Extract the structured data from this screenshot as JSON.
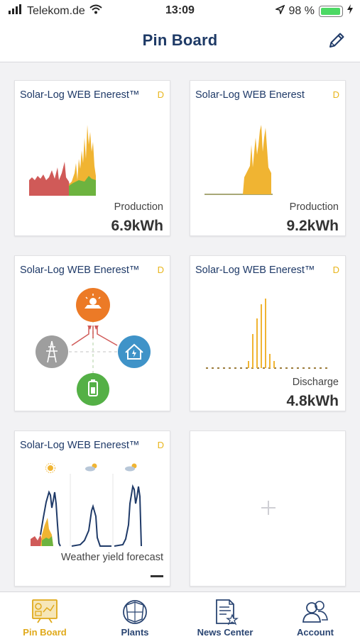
{
  "status_bar": {
    "carrier": "Telekom.de",
    "time": "13:09",
    "battery": "98 %"
  },
  "nav": {
    "title": "Pin Board"
  },
  "cards": [
    {
      "title": "Solar-Log WEB Enerest™",
      "badge": "D",
      "label": "Production",
      "value": "6.9kWh"
    },
    {
      "title": "Solar-Log WEB Enerest",
      "badge": "D",
      "label": "Production",
      "value": "9.2kWh"
    },
    {
      "title": "Solar-Log WEB Enerest™",
      "badge": "D"
    },
    {
      "title": "Solar-Log WEB Enerest™",
      "badge": "D",
      "label": "Discharge",
      "value": "4.8kWh"
    },
    {
      "title": "Solar-Log WEB Enerest™",
      "badge": "D",
      "label": "Weather yield forecast"
    }
  ],
  "tabs": [
    {
      "label": "Pin Board",
      "icon": "pinboard-icon",
      "active": true
    },
    {
      "label": "Plants",
      "icon": "plants-icon"
    },
    {
      "label": "News Center",
      "icon": "news-icon"
    },
    {
      "label": "Account",
      "icon": "account-icon"
    }
  ],
  "colors": {
    "accent": "#e8b51b",
    "navy": "#1f3a68",
    "production": "#f0b432",
    "consumption_red": "#d05a58",
    "green": "#6db33f"
  }
}
